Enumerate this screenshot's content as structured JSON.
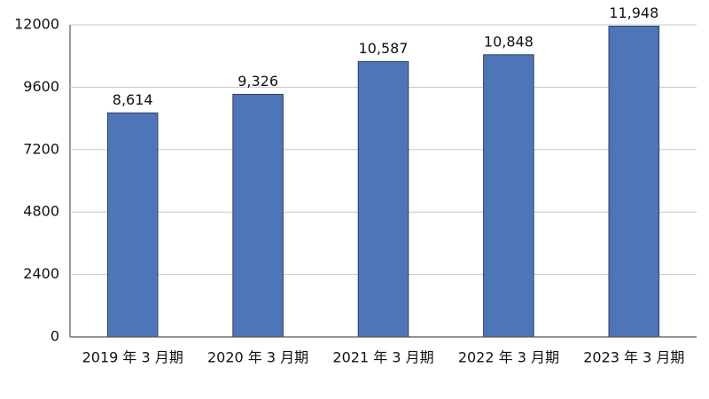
{
  "chart_data": {
    "type": "bar",
    "categories": [
      "2019 年 3 月期",
      "2020 年 3 月期",
      "2021 年 3 月期",
      "2022 年 3 月期",
      "2023 年 3 月期"
    ],
    "values": [
      8614,
      9326,
      10587,
      10848,
      11948
    ],
    "value_labels": [
      "8,614",
      "9,326",
      "10,587",
      "10,848",
      "11,948"
    ],
    "color": "#4f75b9",
    "ylim": [
      0,
      12000
    ],
    "yticks": [
      0,
      2400,
      4800,
      7200,
      9600,
      12000
    ],
    "grid": true
  }
}
